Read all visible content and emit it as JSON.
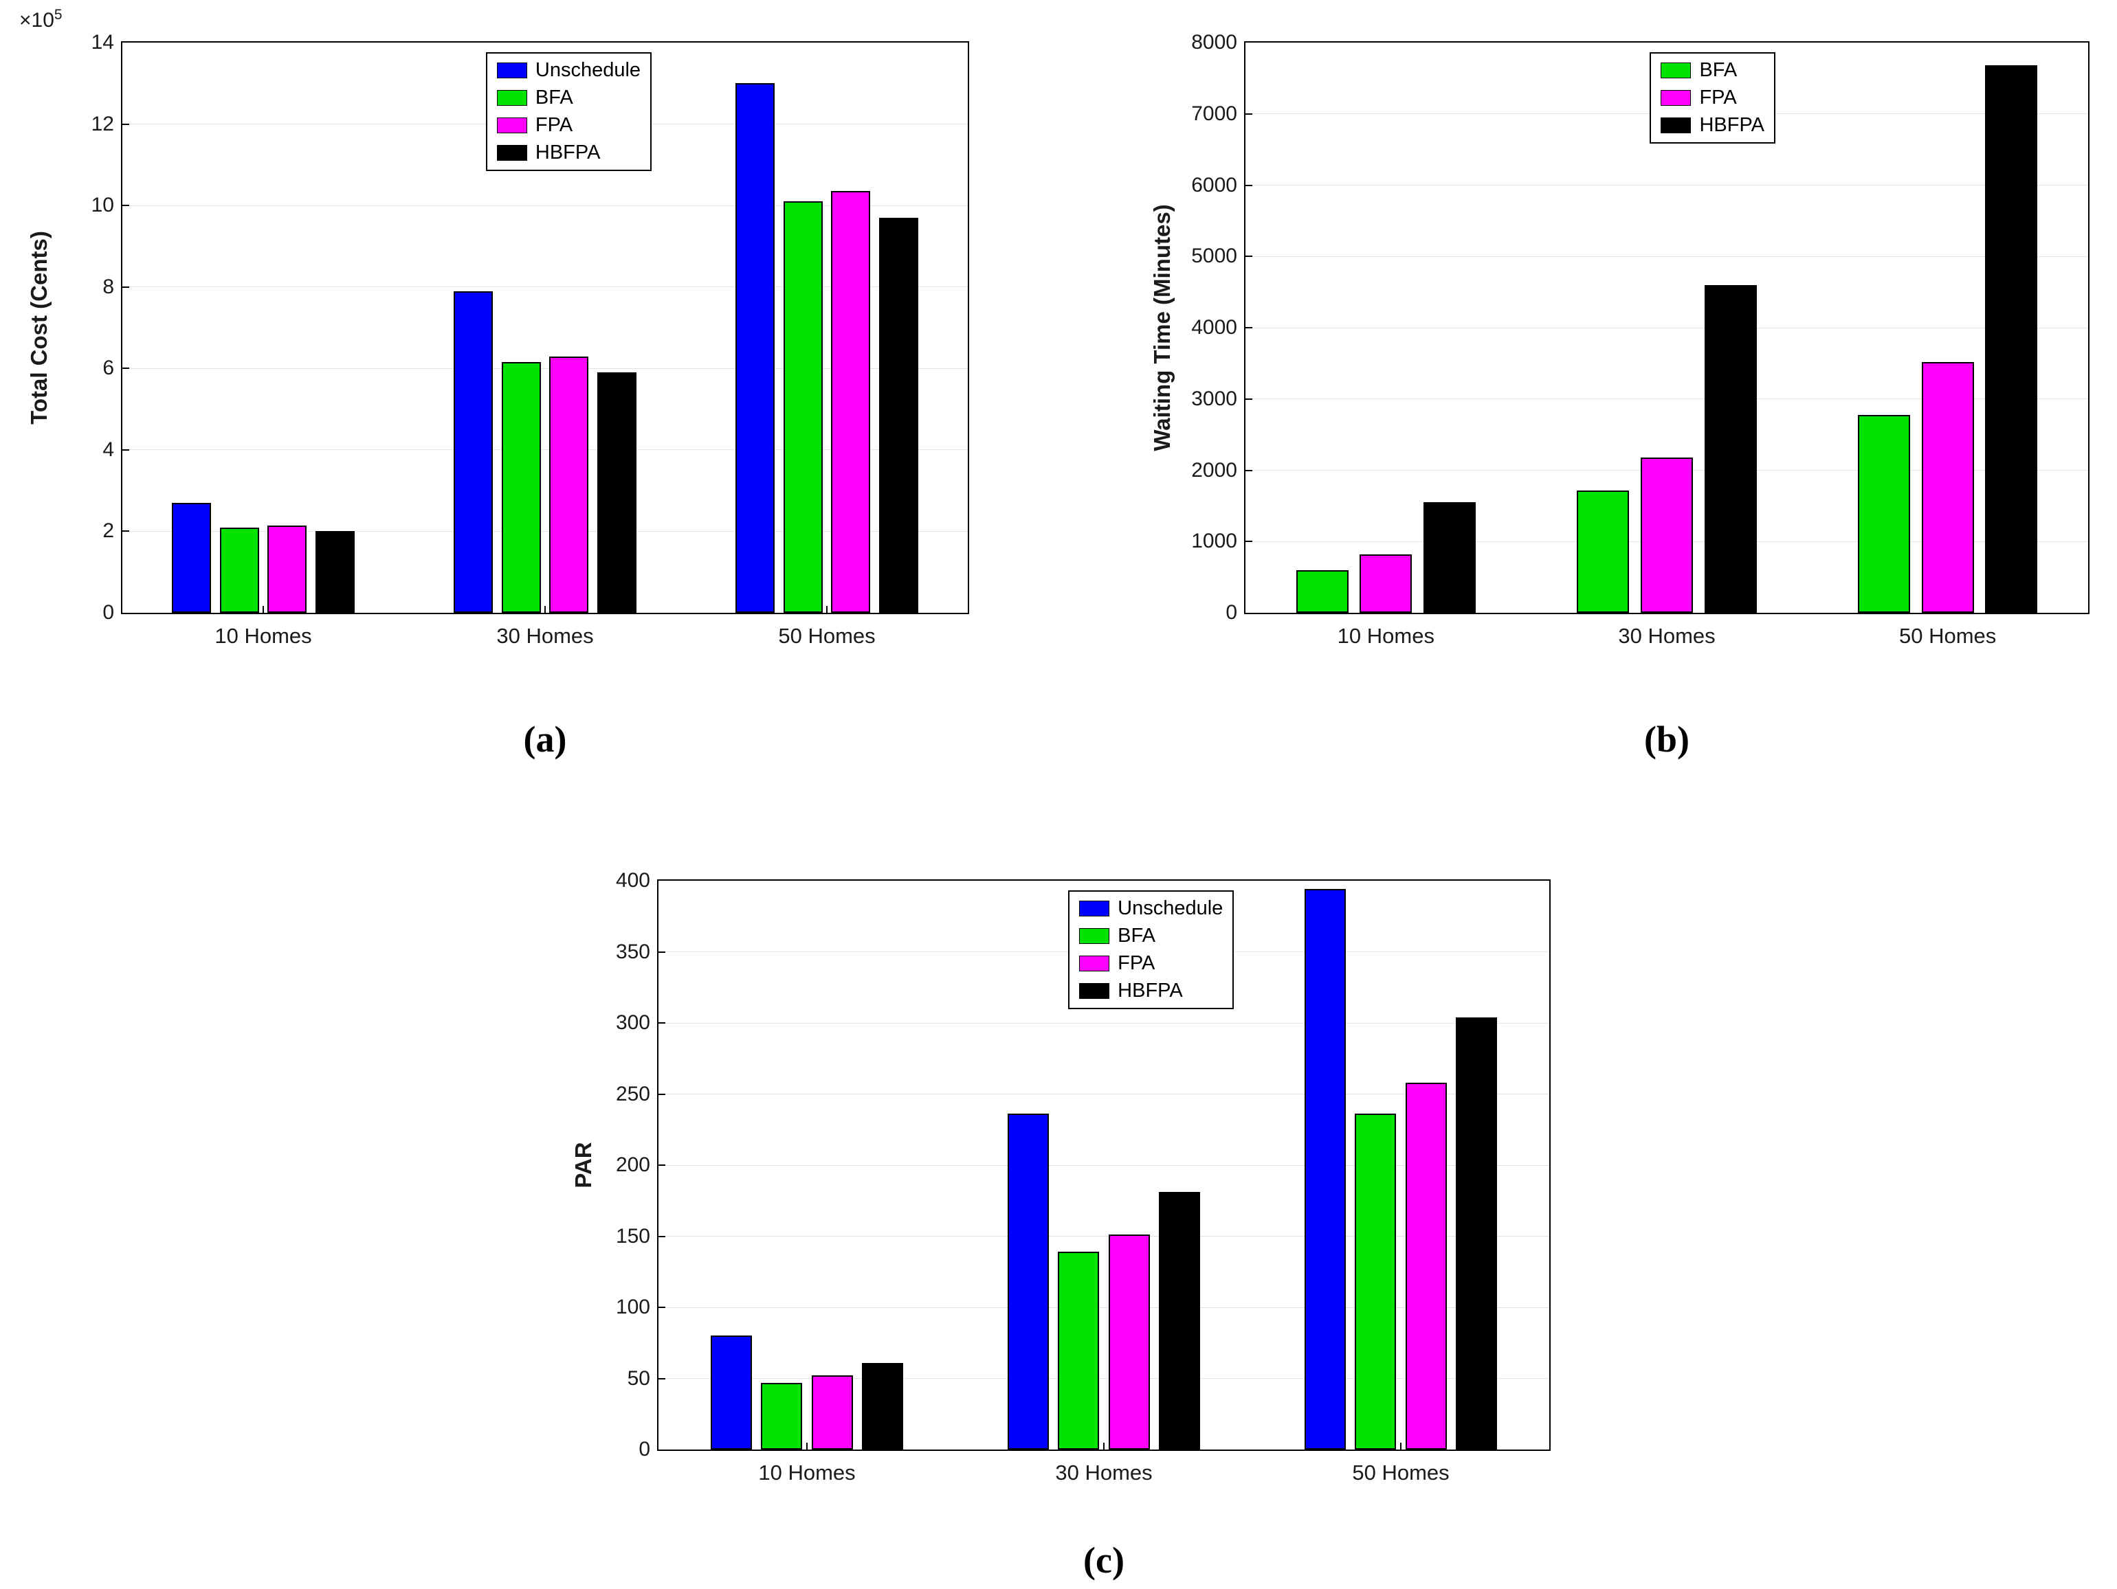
{
  "figure": {
    "captions": {
      "a": "(a)",
      "b": "(b)",
      "c": "(c)"
    }
  },
  "colors": {
    "unschedule": "#0000ff",
    "bfa": "#00e300",
    "fpa": "#ff00ff",
    "hbfpa": "#000000",
    "grid": "#e2e2e2"
  },
  "chart_data": [
    {
      "id": "a",
      "type": "bar",
      "title": "",
      "xlabel": "",
      "ylabel": "Total Cost (Cents)",
      "y_offset_prefix": "×10",
      "y_offset_exponent": "5",
      "categories": [
        "10 Homes",
        "30 Homes",
        "50 Homes"
      ],
      "series": [
        {
          "name": "Unschedule",
          "color": "#0000ff",
          "values": [
            2.7,
            7.9,
            13.0
          ]
        },
        {
          "name": "BFA",
          "color": "#00e300",
          "values": [
            2.1,
            6.15,
            10.1
          ]
        },
        {
          "name": "FPA",
          "color": "#ff00ff",
          "values": [
            2.15,
            6.3,
            10.35
          ]
        },
        {
          "name": "HBFPA",
          "color": "#000000",
          "values": [
            2.0,
            5.9,
            9.7
          ]
        }
      ],
      "ylim": [
        0,
        14
      ],
      "yticks": [
        0,
        2,
        4,
        6,
        8,
        10,
        12,
        14
      ],
      "grid": true,
      "legend_position": "top-center",
      "legend_left_frac": 0.43,
      "legend_top": 14
    },
    {
      "id": "b",
      "type": "bar",
      "title": "",
      "xlabel": "",
      "ylabel": "Waiting Time (Minutes)",
      "categories": [
        "10 Homes",
        "30 Homes",
        "50 Homes"
      ],
      "series": [
        {
          "name": "BFA",
          "color": "#00e300",
          "values": [
            600,
            1720,
            2780
          ]
        },
        {
          "name": "FPA",
          "color": "#ff00ff",
          "values": [
            820,
            2180,
            3520
          ]
        },
        {
          "name": "HBFPA",
          "color": "#000000",
          "values": [
            1550,
            4600,
            7680
          ]
        }
      ],
      "ylim": [
        0,
        8000
      ],
      "yticks": [
        0,
        1000,
        2000,
        3000,
        4000,
        5000,
        6000,
        7000,
        8000
      ],
      "grid": true,
      "legend_position": "top-center",
      "legend_left_frac": 0.48,
      "legend_top": 14
    },
    {
      "id": "c",
      "type": "bar",
      "title": "",
      "xlabel": "",
      "ylabel": "PAR",
      "categories": [
        "10 Homes",
        "30 Homes",
        "50 Homes"
      ],
      "series": [
        {
          "name": "Unschedule",
          "color": "#0000ff",
          "values": [
            80,
            236,
            394
          ]
        },
        {
          "name": "BFA",
          "color": "#00e300",
          "values": [
            47,
            139,
            236
          ]
        },
        {
          "name": "FPA",
          "color": "#ff00ff",
          "values": [
            52,
            151,
            258
          ]
        },
        {
          "name": "HBFPA",
          "color": "#000000",
          "values": [
            61,
            181,
            304
          ]
        }
      ],
      "ylim": [
        0,
        400
      ],
      "yticks": [
        0,
        50,
        100,
        150,
        200,
        250,
        300,
        350,
        400
      ],
      "grid": true,
      "legend_position": "top-center",
      "legend_left_frac": 0.46,
      "legend_top": 14
    }
  ]
}
